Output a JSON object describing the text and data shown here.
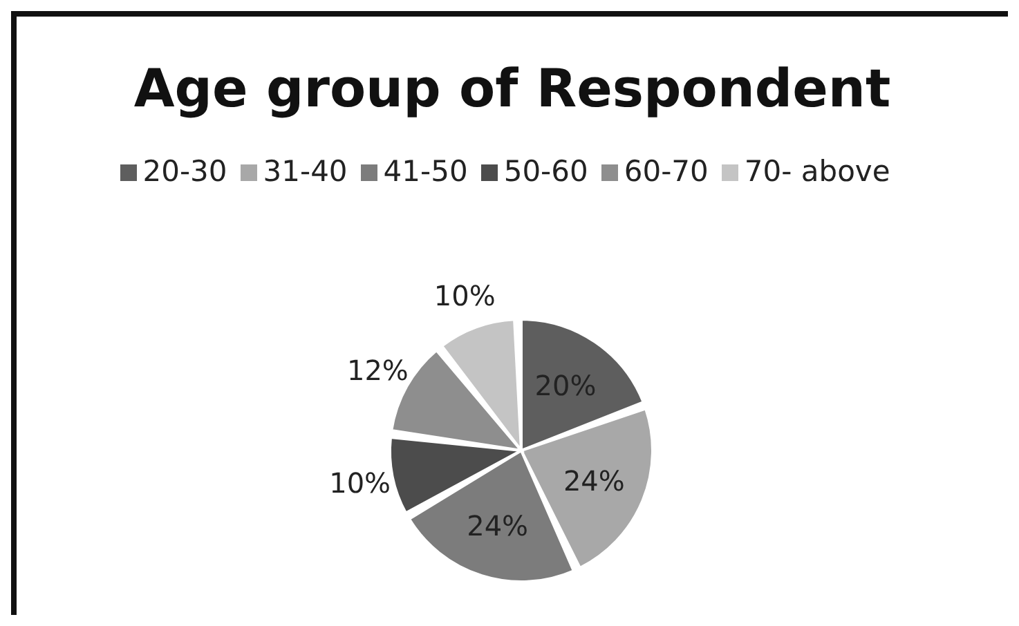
{
  "chart_data": {
    "type": "pie",
    "title": "Age group of Respondent",
    "categories": [
      "20-30",
      "31-40",
      "41-50",
      "50-60",
      "60-70",
      "70- above"
    ],
    "values": [
      20,
      24,
      24,
      10,
      12,
      10
    ],
    "value_labels": [
      "20%",
      "24%",
      "24%",
      "10%",
      "12%",
      "10%"
    ],
    "colors": [
      "#5e5e5e",
      "#a8a8a8",
      "#7c7c7c",
      "#4c4c4c",
      "#8e8e8e",
      "#c4c4c4"
    ],
    "legend": "top"
  }
}
